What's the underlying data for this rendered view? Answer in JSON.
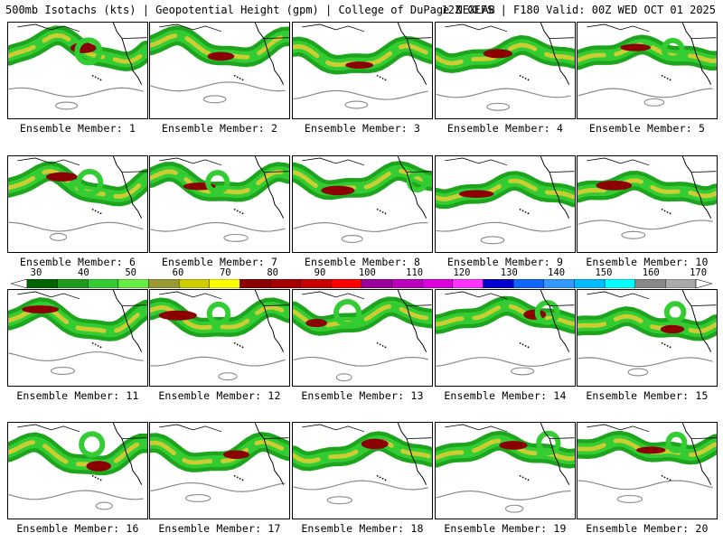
{
  "header": {
    "left": "500mb Isotachs (kts) | Geopotential Height (gpm) | College of DuPage NEXLAB",
    "right": "12Z GEFS | F180 Valid: 00Z WED OCT 01 2025"
  },
  "panels": [
    {
      "label": "Ensemble Member: 1"
    },
    {
      "label": "Ensemble Member: 2"
    },
    {
      "label": "Ensemble Member: 3"
    },
    {
      "label": "Ensemble Member: 4"
    },
    {
      "label": "Ensemble Member: 5"
    },
    {
      "label": "Ensemble Member: 6"
    },
    {
      "label": "Ensemble Member: 7"
    },
    {
      "label": "Ensemble Member: 8"
    },
    {
      "label": "Ensemble Member: 9"
    },
    {
      "label": "Ensemble Member: 10"
    },
    {
      "label": "Ensemble Member: 11"
    },
    {
      "label": "Ensemble Member: 12"
    },
    {
      "label": "Ensemble Member: 13"
    },
    {
      "label": "Ensemble Member: 14"
    },
    {
      "label": "Ensemble Member: 15"
    },
    {
      "label": "Ensemble Member: 16"
    },
    {
      "label": "Ensemble Member: 17"
    },
    {
      "label": "Ensemble Member: 18"
    },
    {
      "label": "Ensemble Member: 19"
    },
    {
      "label": "Ensemble Member: 20"
    }
  ],
  "colorbar": {
    "labels": [
      "30",
      "40",
      "50",
      "60",
      "70",
      "80",
      "90",
      "100",
      "110",
      "120",
      "130",
      "140",
      "150",
      "160",
      "170"
    ],
    "colors": [
      "#006400",
      "#1e9b1e",
      "#33cc33",
      "#66ee44",
      "#999933",
      "#cccc00",
      "#ffff00",
      "#8b0000",
      "#a50000",
      "#c80000",
      "#ff0000",
      "#9b009b",
      "#bb00bb",
      "#dd00dd",
      "#ff33ff",
      "#0000cc",
      "#1166ff",
      "#3399ff",
      "#00bbff",
      "#00ffff",
      "#888888",
      "#aaaaaa"
    ]
  },
  "map_colors": {
    "jet_outer": "#1ea51e",
    "jet_mid": "#33cc33",
    "jet_core_yellow": "#cccc33",
    "jet_max": "#8b0000",
    "height_contour": "#888888",
    "coast": "#000000"
  }
}
